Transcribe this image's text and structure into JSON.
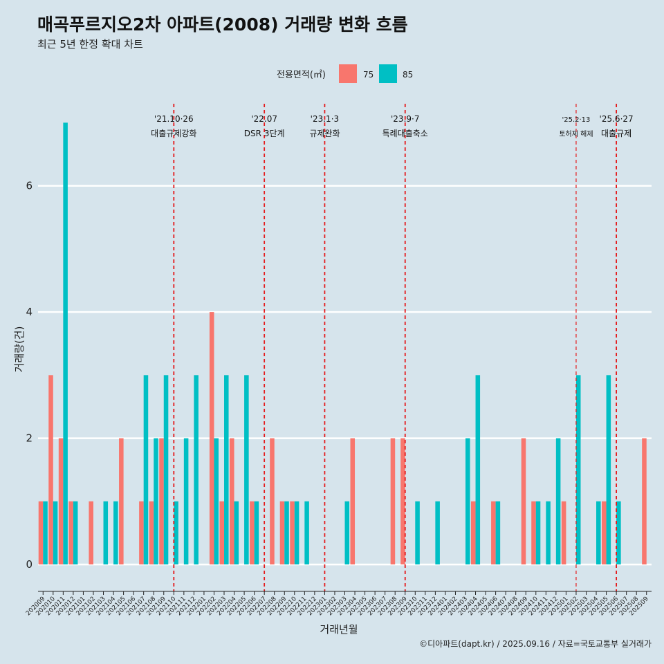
{
  "header": {
    "title": "매곡푸르지오2차 아파트(2008) 거래량 변화 흐름",
    "subtitle": "최근 5년 한정 확대 차트"
  },
  "legend": {
    "title": "전용면적(㎡)",
    "items": [
      {
        "label": "75",
        "color": "#f8766d"
      },
      {
        "label": "85",
        "color": "#00bfc4"
      }
    ]
  },
  "caption": "©디아파트(dapt.kr) / 2025.09.16 / 자료=국토교통부 실거래가",
  "chart_data": {
    "type": "bar",
    "xlabel": "거래년월",
    "ylabel": "거래량(건)",
    "ylim": [
      -0.35,
      7.3
    ],
    "yticks": [
      0,
      2,
      4,
      6
    ],
    "grid": true,
    "legend_position": "top",
    "categories": [
      "202009",
      "202010",
      "202011",
      "202012",
      "202101",
      "202102",
      "202103",
      "202104",
      "202105",
      "202106",
      "202107",
      "202108",
      "202109",
      "202110",
      "202111",
      "202112",
      "202201",
      "202202",
      "202203",
      "202204",
      "202205",
      "202206",
      "202207",
      "202208",
      "202209",
      "202210",
      "202211",
      "202212",
      "202301",
      "202302",
      "202303",
      "202304",
      "202305",
      "202306",
      "202307",
      "202308",
      "202309",
      "202310",
      "202311",
      "202312",
      "202401",
      "202402",
      "202403",
      "202404",
      "202405",
      "202406",
      "202407",
      "202408",
      "202409",
      "202410",
      "202411",
      "202412",
      "202501",
      "202502",
      "202503",
      "202504",
      "202505",
      "202506",
      "202507",
      "202508",
      "202509"
    ],
    "series": [
      {
        "name": "75",
        "color": "#f8766d",
        "values": [
          1,
          3,
          2,
          1,
          0,
          1,
          0,
          0,
          2,
          0,
          1,
          1,
          2,
          0,
          0,
          0,
          0,
          4,
          1,
          2,
          0,
          1,
          0,
          2,
          1,
          1,
          0,
          0,
          0,
          0,
          0,
          2,
          0,
          0,
          0,
          2,
          2,
          0,
          0,
          0,
          0,
          0,
          0,
          1,
          0,
          1,
          0,
          0,
          2,
          1,
          0,
          0,
          1,
          0,
          0,
          0,
          1,
          0,
          0,
          0,
          2
        ]
      },
      {
        "name": "85",
        "color": "#00bfc4",
        "values": [
          1,
          1,
          7,
          1,
          0,
          0,
          1,
          1,
          0,
          0,
          3,
          2,
          3,
          1,
          2,
          3,
          0,
          2,
          3,
          1,
          3,
          1,
          0,
          0,
          1,
          1,
          1,
          0,
          0,
          0,
          1,
          0,
          0,
          0,
          0,
          0,
          0,
          1,
          0,
          1,
          0,
          0,
          2,
          3,
          0,
          1,
          0,
          0,
          0,
          1,
          1,
          2,
          0,
          3,
          0,
          1,
          3,
          1,
          0,
          0,
          0
        ]
      }
    ],
    "annotations": [
      {
        "date": "'21.10·26",
        "label": "대출규제강화",
        "month": "202110",
        "small": false
      },
      {
        "date": "'22.07",
        "label": "DSR 3단계",
        "month": "202207",
        "small": false
      },
      {
        "date": "'23.1·3",
        "label": "규제완화",
        "month": "202301",
        "small": false
      },
      {
        "date": "'23.9·7",
        "label": "특례대출축소",
        "month": "202309",
        "small": false
      },
      {
        "date": "'25.2·13",
        "label": "토허제 해제",
        "month": "202502",
        "small": true
      },
      {
        "date": "'25.6·27",
        "label": "대출규제",
        "month": "202506",
        "small": false
      }
    ],
    "annotation_color": "#e41a1c"
  }
}
